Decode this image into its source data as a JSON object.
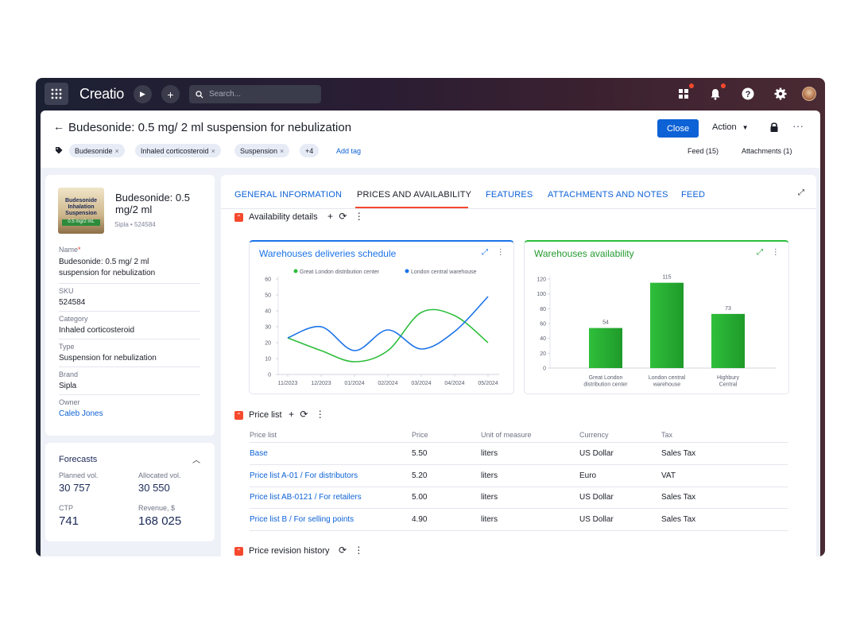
{
  "app": {
    "logo": "Creatio",
    "search_placeholder": "Search..."
  },
  "header": {
    "back": "←",
    "title": "Budesonide: 0.5 mg/ 2 ml suspension for nebulization",
    "close_label": "Close",
    "action_label": "Action",
    "more": "···",
    "tags": [
      "Budesonide",
      "Inhaled corticosteroid",
      "Suspension"
    ],
    "tags_more": "+4",
    "add_tag": "Add tag",
    "feed": "Feed (15)",
    "attachments": "Attachments (1)"
  },
  "product": {
    "image_label": "Budesonide Inhalation Suspension",
    "image_strip": "0.5 mg/2 mL",
    "name": "Budesonide: 0.5 mg/2 ml",
    "subtitle": "Sipla • 524584",
    "fields": [
      {
        "label": "Name",
        "value": "Budesonide: 0.5 mg/ 2 ml suspension for nebulization",
        "required": true
      },
      {
        "label": "SKU",
        "value": "524584"
      },
      {
        "label": "Category",
        "value": "Inhaled corticosteroid"
      },
      {
        "label": "Type",
        "value": "Suspension for nebulization"
      },
      {
        "label": "Brand",
        "value": "Sipla"
      },
      {
        "label": "Owner",
        "value": "Caleb Jones",
        "link": true
      }
    ],
    "required_mark": "*"
  },
  "forecasts": {
    "title": "Forecasts",
    "planned_label": "Planned vol.",
    "planned_value": "30 757",
    "allocated_label": "Allocated vol.",
    "allocated_value": "30 550",
    "ctp_label": "CTP",
    "ctp_value": "741",
    "revenue_label": "Revenue, $",
    "revenue_value": "168 025"
  },
  "tabs": [
    {
      "label": "GENERAL INFORMATION",
      "active": false
    },
    {
      "label": "PRICES AND AVAILABILITY",
      "active": true
    },
    {
      "label": "FEATURES",
      "active": false
    },
    {
      "label": "ATTACHMENTS AND NOTES",
      "active": false
    },
    {
      "label": "FEED",
      "active": false
    }
  ],
  "sections": {
    "availability": "Availability details",
    "price_list": "Price list",
    "price_revision": "Price revision history"
  },
  "colors": {
    "accent": "#0d62d6",
    "orange": "#f5492e",
    "green": "#2dbe3c",
    "blue": "#1a73e8"
  },
  "chart_data": [
    {
      "type": "line",
      "title": "Warehouses deliveries schedule",
      "x": [
        "11/2023",
        "12/2023",
        "01/2024",
        "02/2024",
        "03/2024",
        "04/2024",
        "05/2024"
      ],
      "ylim": [
        0,
        60
      ],
      "yticks": [
        0,
        10,
        20,
        30,
        40,
        50,
        60
      ],
      "legend": "top",
      "series": [
        {
          "name": "Great London distribution center",
          "color": "#2dbe3c",
          "values": [
            23,
            15,
            8,
            15,
            39,
            37,
            20
          ]
        },
        {
          "name": "London central warehouse",
          "color": "#1a73e8",
          "values": [
            23,
            30,
            15,
            28,
            16,
            27,
            49
          ]
        }
      ]
    },
    {
      "type": "bar",
      "title": "Warehouses availability",
      "categories": [
        "Great London distribution center",
        "London central warehouse",
        "Highbury Central"
      ],
      "category_lines": [
        [
          "Great London",
          "distribution center"
        ],
        [
          "London central",
          "warehouse"
        ],
        [
          "Highbury",
          "Central"
        ]
      ],
      "values": [
        54,
        115,
        73
      ],
      "ylim": [
        0,
        120
      ],
      "yticks": [
        0,
        20,
        40,
        60,
        80,
        100,
        120
      ]
    }
  ],
  "price_table": {
    "columns": [
      "Price list",
      "Price",
      "Unit of measure",
      "Currency",
      "Tax"
    ],
    "rows": [
      [
        "Base",
        "5.50",
        "liters",
        "US Dollar",
        "Sales Tax"
      ],
      [
        "Price list A-01 / For distributors",
        "5.20",
        "liters",
        "Euro",
        "VAT"
      ],
      [
        "Price list AB-0121 / For retailers",
        "5.00",
        "liters",
        "US Dollar",
        "Sales Tax"
      ],
      [
        "Price list B / For selling points",
        "4.90",
        "liters",
        "US Dollar",
        "Sales Tax"
      ]
    ]
  }
}
